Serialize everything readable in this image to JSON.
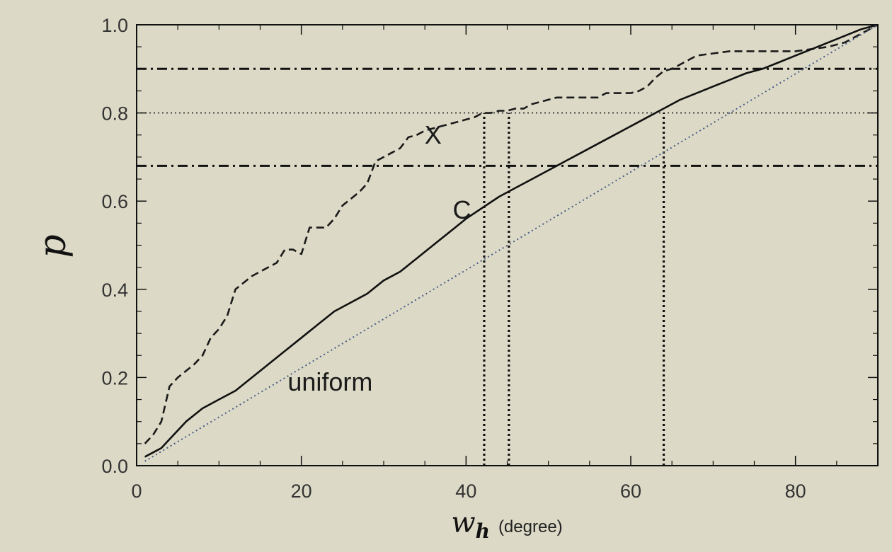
{
  "chart_data": {
    "type": "line",
    "xlabel": "w",
    "xlabel_subscript": "h",
    "xlabel_unit": "(degree)",
    "ylabel": "p",
    "xlim": [
      0,
      90
    ],
    "ylim": [
      0.0,
      1.0
    ],
    "x_ticks": [
      0,
      20,
      40,
      60,
      80
    ],
    "y_ticks": [
      "0.0",
      "0.2",
      "0.4",
      "0.6",
      "0.8",
      "1.0"
    ],
    "y_tick_values": [
      0.0,
      0.2,
      0.4,
      0.6,
      0.8,
      1.0
    ],
    "grid": false,
    "annotations": [
      {
        "text": "X",
        "x": 36,
        "y": 0.73
      },
      {
        "text": "C",
        "x": 39.5,
        "y": 0.56
      },
      {
        "text": "uniform",
        "x": 23.5,
        "y": 0.17
      }
    ],
    "series": [
      {
        "style": "dashed",
        "color": "#1a1a1a",
        "x": [
          1,
          2,
          3,
          4,
          5,
          7,
          8,
          9,
          10,
          11,
          12,
          14,
          16,
          17,
          18,
          19,
          20,
          21,
          22,
          23,
          24,
          25,
          27,
          28,
          29,
          30,
          31,
          32,
          33,
          34,
          35,
          36,
          37,
          38,
          39,
          40,
          41,
          42,
          43,
          44,
          45,
          46,
          47,
          48,
          50,
          51,
          52,
          53,
          54,
          55,
          56,
          57,
          58,
          59,
          60,
          61,
          62,
          63,
          64,
          65,
          66,
          68,
          70,
          72,
          74,
          76,
          78,
          80,
          82,
          84,
          86,
          88,
          90
        ],
        "y": [
          0.05,
          0.07,
          0.1,
          0.18,
          0.2,
          0.23,
          0.25,
          0.29,
          0.31,
          0.34,
          0.4,
          0.43,
          0.45,
          0.46,
          0.49,
          0.49,
          0.48,
          0.54,
          0.54,
          0.54,
          0.56,
          0.59,
          0.62,
          0.64,
          0.69,
          0.7,
          0.71,
          0.72,
          0.745,
          0.75,
          0.76,
          0.765,
          0.77,
          0.775,
          0.78,
          0.785,
          0.79,
          0.8,
          0.8,
          0.805,
          0.805,
          0.81,
          0.81,
          0.82,
          0.83,
          0.835,
          0.835,
          0.835,
          0.835,
          0.835,
          0.835,
          0.845,
          0.845,
          0.845,
          0.845,
          0.85,
          0.86,
          0.88,
          0.895,
          0.9,
          0.91,
          0.93,
          0.935,
          0.94,
          0.94,
          0.94,
          0.94,
          0.94,
          0.945,
          0.95,
          0.96,
          0.98,
          1.0
        ]
      },
      {
        "style": "solid",
        "color": "#111111",
        "x": [
          1,
          2,
          3,
          4,
          5,
          6,
          8,
          10,
          12,
          14,
          16,
          18,
          20,
          22,
          24,
          26,
          28,
          30,
          32,
          34,
          36,
          38,
          40,
          42,
          44,
          46,
          48,
          50,
          52,
          54,
          56,
          58,
          60,
          62,
          64,
          66,
          68,
          70,
          72,
          74,
          76,
          78,
          80,
          82,
          84,
          86,
          88,
          90
        ],
        "y": [
          0.02,
          0.03,
          0.04,
          0.06,
          0.08,
          0.1,
          0.13,
          0.15,
          0.17,
          0.2,
          0.23,
          0.26,
          0.29,
          0.32,
          0.35,
          0.37,
          0.39,
          0.42,
          0.44,
          0.47,
          0.5,
          0.53,
          0.56,
          0.585,
          0.61,
          0.63,
          0.65,
          0.67,
          0.69,
          0.71,
          0.73,
          0.75,
          0.77,
          0.79,
          0.81,
          0.83,
          0.845,
          0.86,
          0.875,
          0.89,
          0.9,
          0.915,
          0.93,
          0.945,
          0.96,
          0.975,
          0.99,
          1.0
        ]
      },
      {
        "style": "dotted",
        "color": "#4a5a88",
        "x": [
          1,
          90
        ],
        "y": [
          0.01,
          1.0
        ]
      }
    ],
    "reference_lines": [
      {
        "orientation": "horizontal",
        "y": 0.9,
        "style": "dashdot"
      },
      {
        "orientation": "horizontal",
        "y": 0.68,
        "style": "dashdot"
      },
      {
        "orientation": "horizontal",
        "y": 0.8,
        "style": "dotted"
      },
      {
        "orientation": "vertical",
        "x": 42.2,
        "y_to": 0.8,
        "style": "dotted-bold"
      },
      {
        "orientation": "vertical",
        "x": 45.2,
        "y_to": 0.8,
        "style": "dotted-bold"
      },
      {
        "orientation": "vertical",
        "x": 64,
        "y_to": 0.8,
        "style": "dotted-bold"
      }
    ]
  }
}
